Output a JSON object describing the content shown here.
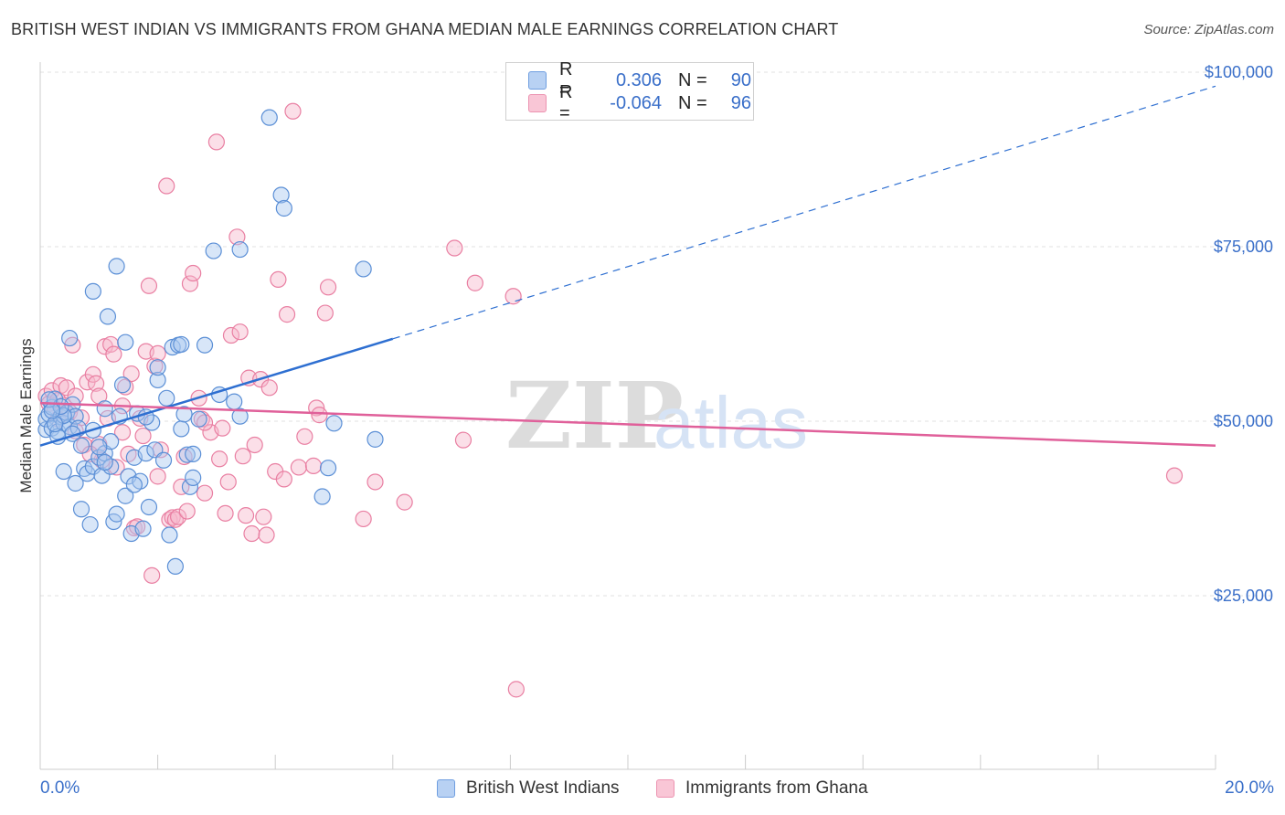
{
  "title": "BRITISH WEST INDIAN VS IMMIGRANTS FROM GHANA MEDIAN MALE EARNINGS CORRELATION CHART",
  "source": "Source: ZipAtlas.com",
  "watermark": {
    "zip": "ZIP",
    "atlas": "atlas"
  },
  "colors": {
    "blue_fill": "#a9c8f0",
    "blue_stroke": "#5b8fd6",
    "blue_line": "#2e6fd1",
    "pink_fill": "#f7b7cb",
    "pink_stroke": "#e97fa2",
    "pink_line": "#e0609a",
    "grid": "#e2e2e2",
    "axis_label": "#3a6fc9"
  },
  "legend": {
    "rows": [
      {
        "r_label": "R =",
        "r_value": "0.306",
        "n_label": "N =",
        "n_value": "90"
      },
      {
        "r_label": "R =",
        "r_value": "-0.064",
        "n_label": "N =",
        "n_value": "96"
      }
    ]
  },
  "bottom_legend": [
    "British West Indians",
    "Immigrants from Ghana"
  ],
  "x_axis": {
    "min_label": "0.0%",
    "max_label": "20.0%"
  },
  "chart_data": {
    "type": "scatter",
    "title": "BRITISH WEST INDIAN VS IMMIGRANTS FROM GHANA MEDIAN MALE EARNINGS CORRELATION CHART",
    "xlabel": "",
    "ylabel": "Median Male Earnings",
    "xlim": [
      0,
      20
    ],
    "ylim": [
      0,
      105000
    ],
    "y_ticks": [
      25000,
      50000,
      75000,
      100000
    ],
    "y_tick_labels": [
      "$25,000",
      "$50,000",
      "$75,000",
      "$100,000"
    ],
    "grid": true,
    "series": [
      {
        "name": "British West Indians",
        "R": 0.306,
        "N": 90,
        "trend": {
          "x0": 0.0,
          "y0": 46500,
          "x1": 6.0,
          "y1": 61800,
          "dash_to_x": 20.0,
          "dash_to_y": 98000
        },
        "points": [
          [
            0.1,
            48800
          ],
          [
            0.1,
            50300
          ],
          [
            0.15,
            51000
          ],
          [
            0.2,
            52000
          ],
          [
            0.2,
            49000
          ],
          [
            0.25,
            53200
          ],
          [
            0.3,
            48500
          ],
          [
            0.35,
            50600
          ],
          [
            0.4,
            49700
          ],
          [
            0.45,
            51200
          ],
          [
            0.5,
            49200
          ],
          [
            0.55,
            52400
          ],
          [
            0.6,
            50700
          ],
          [
            0.65,
            49000
          ],
          [
            0.5,
            61900
          ],
          [
            0.4,
            42800
          ],
          [
            0.55,
            48200
          ],
          [
            0.6,
            41100
          ],
          [
            0.7,
            46500
          ],
          [
            0.75,
            43200
          ],
          [
            0.7,
            37400
          ],
          [
            0.8,
            42500
          ],
          [
            0.85,
            35200
          ],
          [
            0.9,
            43500
          ],
          [
            0.9,
            68600
          ],
          [
            1.0,
            44800
          ],
          [
            1.05,
            42200
          ],
          [
            1.1,
            45400
          ],
          [
            1.1,
            51800
          ],
          [
            1.15,
            65000
          ],
          [
            1.2,
            47100
          ],
          [
            1.25,
            35600
          ],
          [
            1.3,
            72200
          ],
          [
            1.3,
            36700
          ],
          [
            1.4,
            55200
          ],
          [
            1.45,
            61300
          ],
          [
            1.45,
            39300
          ],
          [
            1.5,
            42100
          ],
          [
            1.55,
            33900
          ],
          [
            1.6,
            44800
          ],
          [
            1.65,
            51100
          ],
          [
            1.7,
            41400
          ],
          [
            1.75,
            34600
          ],
          [
            1.8,
            45400
          ],
          [
            1.85,
            37700
          ],
          [
            1.9,
            49800
          ],
          [
            1.95,
            45900
          ],
          [
            2.0,
            55900
          ],
          [
            2.1,
            44400
          ],
          [
            2.15,
            53300
          ],
          [
            2.2,
            33700
          ],
          [
            2.25,
            60600
          ],
          [
            2.3,
            29200
          ],
          [
            2.35,
            60900
          ],
          [
            2.4,
            48900
          ],
          [
            2.45,
            51000
          ],
          [
            2.5,
            45200
          ],
          [
            2.55,
            40600
          ],
          [
            2.6,
            41900
          ],
          [
            2.7,
            50300
          ],
          [
            2.8,
            60900
          ],
          [
            2.95,
            74400
          ],
          [
            3.05,
            53800
          ],
          [
            3.4,
            74600
          ],
          [
            3.3,
            52800
          ],
          [
            3.4,
            50700
          ],
          [
            3.9,
            93500
          ],
          [
            4.1,
            82400
          ],
          [
            4.15,
            80500
          ],
          [
            4.9,
            43300
          ],
          [
            5.0,
            49700
          ],
          [
            5.5,
            71800
          ],
          [
            5.7,
            47400
          ],
          [
            0.3,
            47800
          ],
          [
            0.4,
            50800
          ],
          [
            0.25,
            49600
          ],
          [
            0.35,
            52100
          ],
          [
            1.0,
            46300
          ],
          [
            1.2,
            43500
          ],
          [
            1.35,
            50700
          ],
          [
            0.15,
            53100
          ],
          [
            0.2,
            51500
          ],
          [
            1.6,
            40900
          ],
          [
            2.0,
            57700
          ],
          [
            2.4,
            61000
          ],
          [
            1.1,
            44100
          ],
          [
            0.9,
            48700
          ],
          [
            1.8,
            50600
          ],
          [
            4.8,
            39200
          ],
          [
            2.6,
            45300
          ]
        ]
      },
      {
        "name": "Immigrants from Ghana",
        "R": -0.064,
        "N": 96,
        "trend": {
          "x0": 0.0,
          "y0": 52600,
          "x1": 20.0,
          "y1": 46500
        },
        "points": [
          [
            0.1,
            53600
          ],
          [
            0.15,
            52500
          ],
          [
            0.2,
            54400
          ],
          [
            0.25,
            51800
          ],
          [
            0.3,
            53000
          ],
          [
            0.35,
            55100
          ],
          [
            0.4,
            52300
          ],
          [
            0.45,
            54800
          ],
          [
            0.5,
            51300
          ],
          [
            0.55,
            60900
          ],
          [
            0.6,
            53600
          ],
          [
            0.7,
            50500
          ],
          [
            0.75,
            46600
          ],
          [
            0.8,
            55600
          ],
          [
            0.9,
            56700
          ],
          [
            0.95,
            55400
          ],
          [
            1.0,
            46700
          ],
          [
            1.05,
            44400
          ],
          [
            1.1,
            60700
          ],
          [
            1.15,
            50400
          ],
          [
            1.2,
            61000
          ],
          [
            1.25,
            59600
          ],
          [
            1.3,
            43400
          ],
          [
            1.4,
            52200
          ],
          [
            1.45,
            54900
          ],
          [
            1.5,
            45300
          ],
          [
            1.55,
            56800
          ],
          [
            1.6,
            34700
          ],
          [
            1.65,
            34900
          ],
          [
            1.7,
            50400
          ],
          [
            1.8,
            60000
          ],
          [
            1.85,
            69400
          ],
          [
            1.9,
            27900
          ],
          [
            1.95,
            57900
          ],
          [
            2.0,
            59700
          ],
          [
            2.05,
            45900
          ],
          [
            2.15,
            83700
          ],
          [
            2.2,
            35900
          ],
          [
            2.25,
            36200
          ],
          [
            2.3,
            35900
          ],
          [
            2.35,
            36300
          ],
          [
            2.4,
            40600
          ],
          [
            2.45,
            44900
          ],
          [
            2.5,
            37100
          ],
          [
            2.55,
            69700
          ],
          [
            2.6,
            71200
          ],
          [
            2.7,
            53300
          ],
          [
            2.75,
            50300
          ],
          [
            2.8,
            39700
          ],
          [
            2.9,
            48400
          ],
          [
            3.0,
            90000
          ],
          [
            3.05,
            44600
          ],
          [
            3.1,
            49000
          ],
          [
            3.15,
            36800
          ],
          [
            3.25,
            62300
          ],
          [
            3.35,
            76400
          ],
          [
            3.4,
            62800
          ],
          [
            3.45,
            45000
          ],
          [
            3.5,
            36500
          ],
          [
            3.55,
            56200
          ],
          [
            3.6,
            33900
          ],
          [
            3.65,
            46600
          ],
          [
            3.75,
            56000
          ],
          [
            3.8,
            36300
          ],
          [
            3.85,
            33700
          ],
          [
            3.9,
            54800
          ],
          [
            4.0,
            42800
          ],
          [
            4.05,
            70300
          ],
          [
            4.15,
            41700
          ],
          [
            4.2,
            65300
          ],
          [
            4.3,
            94400
          ],
          [
            4.4,
            43400
          ],
          [
            4.65,
            43600
          ],
          [
            4.7,
            51900
          ],
          [
            4.75,
            50900
          ],
          [
            4.85,
            65500
          ],
          [
            4.9,
            69200
          ],
          [
            5.5,
            36000
          ],
          [
            5.7,
            41300
          ],
          [
            6.2,
            38400
          ],
          [
            7.05,
            74800
          ],
          [
            7.2,
            47300
          ],
          [
            7.4,
            69800
          ],
          [
            8.05,
            67900
          ],
          [
            8.1,
            11600
          ],
          [
            19.3,
            42200
          ],
          [
            0.3,
            50300
          ],
          [
            0.6,
            48600
          ],
          [
            1.0,
            53600
          ],
          [
            1.4,
            48400
          ],
          [
            2.0,
            42100
          ],
          [
            0.85,
            45300
          ],
          [
            2.8,
            49800
          ],
          [
            1.75,
            47900
          ],
          [
            3.2,
            41300
          ],
          [
            4.5,
            47800
          ]
        ]
      }
    ]
  }
}
